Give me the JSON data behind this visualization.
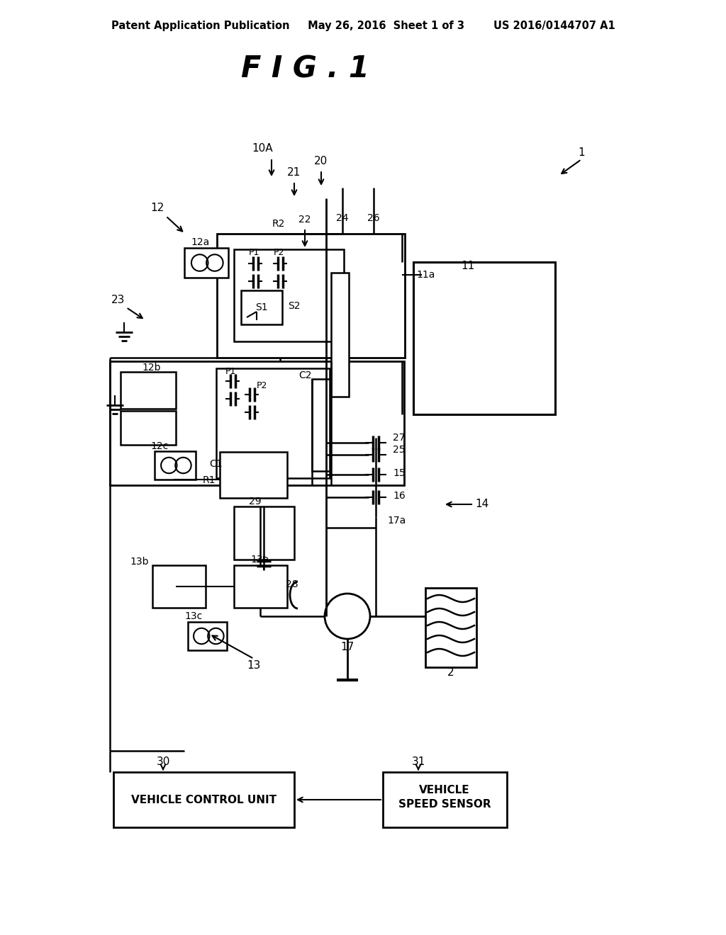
{
  "bg_color": "#ffffff",
  "header_left": "Patent Application Publication",
  "header_mid": "May 26, 2016  Sheet 1 of 3",
  "header_right": "US 2016/0144707 A1",
  "title": "F I G . 1"
}
